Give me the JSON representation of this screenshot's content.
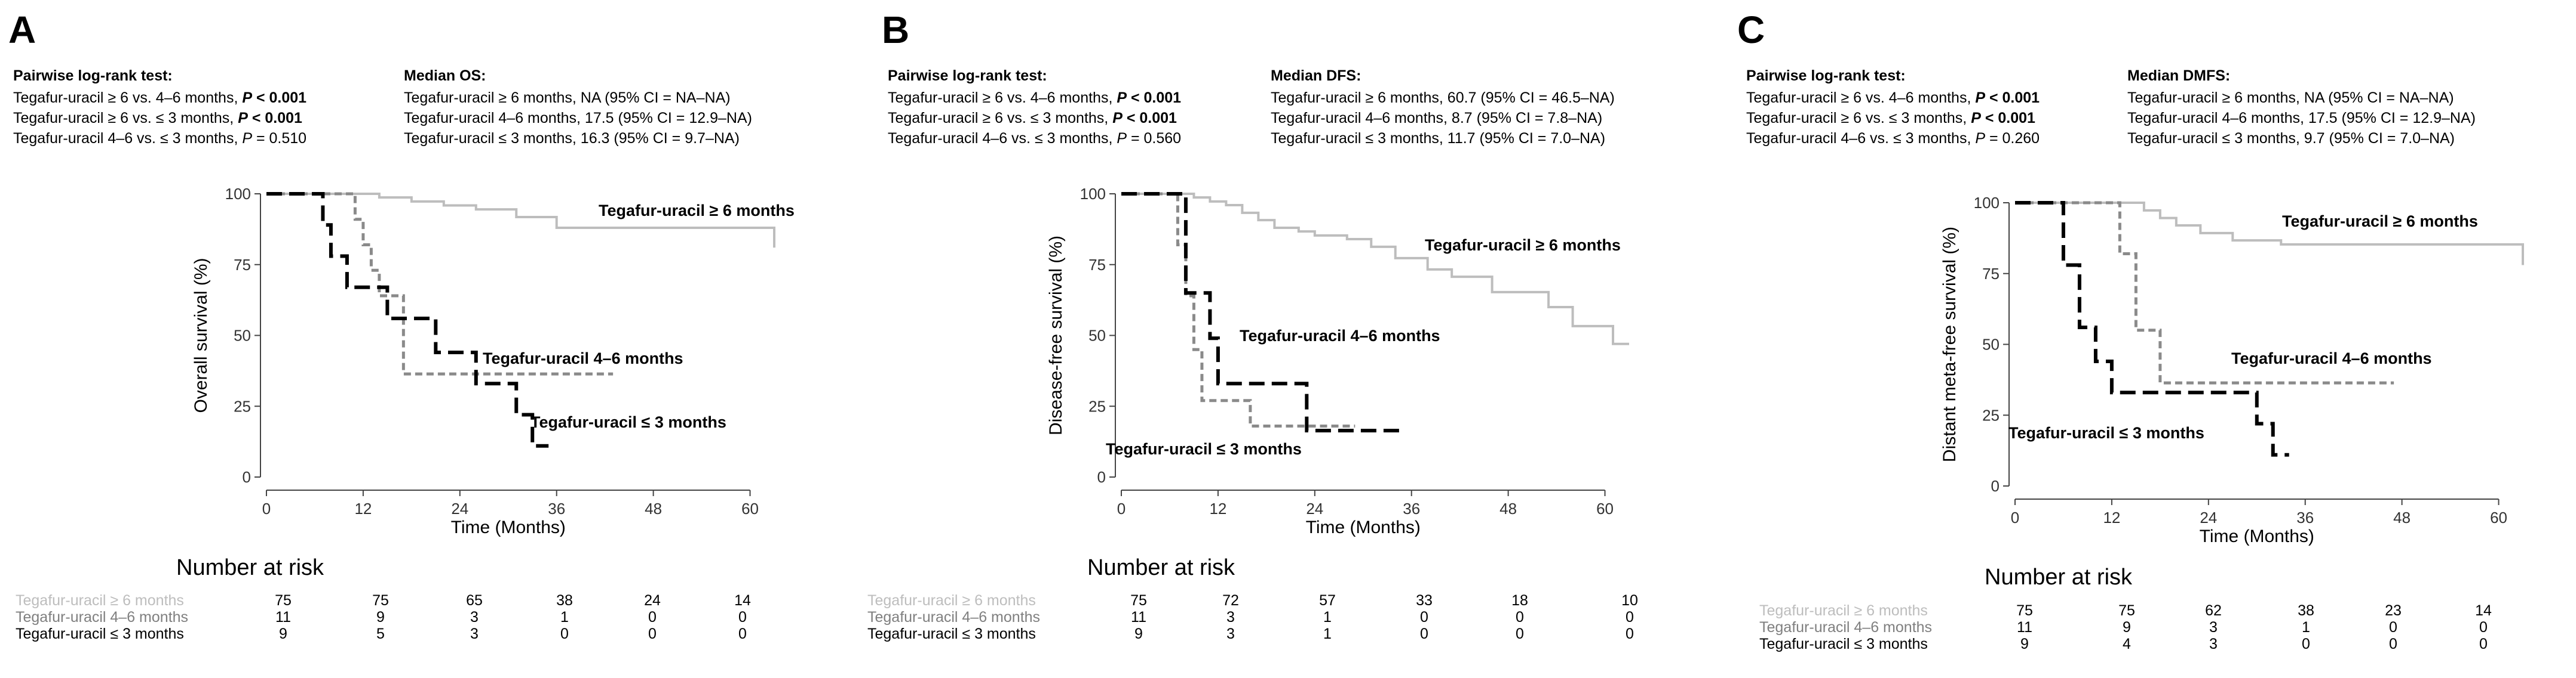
{
  "panels": [
    {
      "letter": "A",
      "test": {
        "heading": "Pairwise log-rank test:",
        "lines": [
          {
            "prefix": "Tegafur-uracil ≥ 6 vs. 4–6 months, ",
            "p": "P",
            "value": " < 0.001",
            "bold": true
          },
          {
            "prefix": "Tegafur-uracil ≥ 6 vs. ≤ 3 months, ",
            "p": "P",
            "value": " < 0.001",
            "bold": true
          },
          {
            "prefix": "Tegafur-uracil 4–6 vs. ≤ 3 months, ",
            "p": "P",
            "value": " = 0.510",
            "bold": false
          }
        ]
      },
      "median": {
        "heading": "Median OS:",
        "lines": [
          "Tegafur-uracil ≥ 6 months, NA (95% CI = NA–NA)",
          "Tegafur-uracil 4–6 months, 17.5 (95% CI = 12.9–NA)",
          "Tegafur-uracil ≤ 3 months, 16.3 (95% CI = 9.7–NA)"
        ]
      },
      "risk": {
        "title": "Number at risk",
        "rows": [
          {
            "label": "Tegafur-uracil ≥ 6 months",
            "color": "#bdbdbd",
            "values": [
              "75",
              "75",
              "65",
              "38",
              "24",
              "14"
            ]
          },
          {
            "label": "Tegafur-uracil 4–6 months",
            "color": "#7f7f7f",
            "values": [
              "11",
              "9",
              "3",
              "1",
              "0",
              "0"
            ]
          },
          {
            "label": "Tegafur-uracil ≤ 3 months",
            "color": "#000000",
            "values": [
              "9",
              "5",
              "3",
              "0",
              "0",
              "0"
            ]
          }
        ]
      }
    },
    {
      "letter": "B",
      "test": {
        "heading": "Pairwise log-rank test:",
        "lines": [
          {
            "prefix": "Tegafur-uracil ≥ 6 vs. 4–6 months, ",
            "p": "P",
            "value": " < 0.001",
            "bold": true
          },
          {
            "prefix": "Tegafur-uracil ≥ 6 vs. ≤ 3 months, ",
            "p": "P",
            "value": " < 0.001",
            "bold": true
          },
          {
            "prefix": "Tegafur-uracil 4–6 vs. ≤ 3 months, ",
            "p": "P",
            "value": " = 0.560",
            "bold": false
          }
        ]
      },
      "median": {
        "heading": "Median DFS:",
        "lines": [
          "Tegafur-uracil ≥ 6 months, 60.7 (95% CI = 46.5–NA)",
          "Tegafur-uracil 4–6 months, 8.7 (95% CI = 7.8–NA)",
          "Tegafur-uracil ≤ 3 months, 11.7 (95% CI = 7.0–NA)"
        ]
      },
      "risk": {
        "title": "Number at risk",
        "rows": [
          {
            "label": "Tegafur-uracil ≥ 6 months",
            "color": "#bdbdbd",
            "values": [
              "75",
              "72",
              "57",
              "33",
              "18",
              "10"
            ]
          },
          {
            "label": "Tegafur-uracil 4–6 months",
            "color": "#7f7f7f",
            "values": [
              "11",
              "3",
              "1",
              "0",
              "0",
              "0"
            ]
          },
          {
            "label": "Tegafur-uracil ≤ 3 months",
            "color": "#000000",
            "values": [
              "9",
              "3",
              "1",
              "0",
              "0",
              "0"
            ]
          }
        ]
      }
    },
    {
      "letter": "C",
      "test": {
        "heading": "Pairwise log-rank test:",
        "lines": [
          {
            "prefix": "Tegafur-uracil ≥ 6 vs. 4–6 months, ",
            "p": "P",
            "value": " < 0.001",
            "bold": true
          },
          {
            "prefix": "Tegafur-uracil ≥ 6 vs. ≤ 3 months, ",
            "p": "P",
            "value": " < 0.001",
            "bold": true
          },
          {
            "prefix": "Tegafur-uracil 4–6 vs. ≤ 3 months, ",
            "p": "P",
            "value": " = 0.260",
            "bold": false
          }
        ]
      },
      "median": {
        "heading": "Median DMFS:",
        "lines": [
          "Tegafur-uracil ≥ 6 months, NA (95% CI = NA–NA)",
          "Tegafur-uracil 4–6 months, 17.5 (95% CI = 12.9–NA)",
          "Tegafur-uracil ≤ 3 months, 9.7 (95% CI = 7.0–NA)"
        ]
      },
      "risk": {
        "title": "Number at risk",
        "rows": [
          {
            "label": "Tegafur-uracil ≥ 6 months",
            "color": "#bdbdbd",
            "values": [
              "75",
              "75",
              "62",
              "38",
              "23",
              "14"
            ]
          },
          {
            "label": "Tegafur-uracil 4–6 months",
            "color": "#7f7f7f",
            "values": [
              "11",
              "9",
              "3",
              "1",
              "0",
              "0"
            ]
          },
          {
            "label": "Tegafur-uracil ≤ 3 months",
            "color": "#000000",
            "values": [
              "9",
              "4",
              "3",
              "0",
              "0",
              "0"
            ]
          }
        ]
      }
    }
  ],
  "colors": {
    "ge6": "#bdbdbd",
    "m46": "#8a8a8a",
    "le3": "#000000"
  },
  "chart_data": [
    {
      "type": "line",
      "title": "A",
      "xlabel": "Time (Months)",
      "ylabel": "Overall survival (%)",
      "xlim": [
        0,
        63
      ],
      "ylim": [
        0,
        100
      ],
      "xticks": [
        0,
        12,
        24,
        36,
        48,
        60
      ],
      "yticks": [
        0,
        25,
        50,
        75,
        100
      ],
      "series": [
        {
          "name": "Tegafur-uracil ≥ 6 months",
          "label": "Tegafur-uracil ≥ 6 months",
          "style": "solid",
          "color": "#bdbdbd",
          "x": [
            0,
            12,
            14,
            18,
            22,
            26,
            31,
            36,
            62,
            63
          ],
          "y": [
            100,
            100,
            98.7,
            97.3,
            95.9,
            94.5,
            91.8,
            88,
            88,
            81
          ]
        },
        {
          "name": "Tegafur-uracil 4–6 months",
          "label": "Tegafur-uracil 4–6 months",
          "style": "dotted",
          "color": "#8a8a8a",
          "x": [
            0,
            10,
            11,
            12,
            13,
            14,
            17,
            43
          ],
          "y": [
            100,
            100,
            91,
            82,
            73,
            64,
            36.4,
            36.4
          ]
        },
        {
          "name": "Tegafur-uracil ≤ 3 months",
          "label": "Tegafur-uracil ≤ 3 months",
          "style": "dashed",
          "color": "#000000",
          "x": [
            0,
            6,
            7,
            8,
            10,
            15,
            21,
            26,
            31,
            33,
            35
          ],
          "y": [
            100,
            100,
            89,
            78,
            67,
            56,
            44,
            33,
            22,
            11,
            11
          ]
        }
      ]
    },
    {
      "type": "line",
      "title": "B",
      "xlabel": "Time (Months)",
      "ylabel": "Disease-free survival (%)",
      "xlim": [
        0,
        63
      ],
      "ylim": [
        0,
        100
      ],
      "xticks": [
        0,
        12,
        24,
        36,
        48,
        60
      ],
      "yticks": [
        0,
        25,
        50,
        75,
        100
      ],
      "series": [
        {
          "name": "Tegafur-uracil ≥ 6 months",
          "label": "Tegafur-uracil ≥ 6 months",
          "style": "solid",
          "color": "#bdbdbd",
          "x": [
            0,
            6,
            9,
            11,
            13,
            15,
            17,
            19,
            22,
            24,
            28,
            31,
            34,
            38,
            41,
            46,
            53,
            56,
            61,
            63
          ],
          "y": [
            100,
            100,
            98.7,
            97.3,
            96,
            93.3,
            90.7,
            88,
            86.7,
            85.3,
            84,
            81.3,
            77.3,
            73.3,
            70.7,
            65.3,
            60,
            53.3,
            47,
            47
          ]
        },
        {
          "name": "Tegafur-uracil 4–6 months",
          "label": "Tegafur-uracil 4–6 months",
          "style": "dotted",
          "color": "#8a8a8a",
          "x": [
            0,
            6,
            7,
            8,
            9,
            10,
            16,
            29
          ],
          "y": [
            100,
            100,
            82,
            64,
            45,
            27,
            18,
            18
          ]
        },
        {
          "name": "Tegafur-uracil ≤ 3 months",
          "label": "Tegafur-uracil ≤ 3 months",
          "style": "dashed",
          "color": "#000000",
          "x": [
            0,
            6,
            8,
            11,
            12,
            23,
            35
          ],
          "y": [
            100,
            100,
            65,
            49,
            33,
            16.4,
            16.4
          ]
        }
      ]
    },
    {
      "type": "line",
      "title": "C",
      "xlabel": "Time (Months)",
      "ylabel": "Distant meta-free survival (%)",
      "xlim": [
        0,
        63
      ],
      "ylim": [
        0,
        100
      ],
      "xticks": [
        0,
        12,
        24,
        36,
        48,
        60
      ],
      "yticks": [
        0,
        25,
        50,
        75,
        100
      ],
      "series": [
        {
          "name": "Tegafur-uracil ≥ 6 months",
          "label": "Tegafur-uracil ≥ 6 months",
          "style": "solid",
          "color": "#bdbdbd",
          "x": [
            0,
            14,
            16,
            18,
            20,
            23,
            27,
            33,
            62,
            63
          ],
          "y": [
            100,
            100,
            97.3,
            94.6,
            92,
            89.3,
            86.7,
            85.3,
            85.3,
            78
          ]
        },
        {
          "name": "Tegafur-uracil 4–6 months",
          "label": "Tegafur-uracil 4–6 months",
          "style": "dotted",
          "color": "#8a8a8a",
          "x": [
            0,
            9,
            13,
            15,
            18,
            47
          ],
          "y": [
            100,
            100,
            82,
            55,
            36.4,
            36.4
          ]
        },
        {
          "name": "Tegafur-uracil ≤ 3 months",
          "label": "Tegafur-uracil ≤ 3 months",
          "style": "dashed",
          "color": "#000000",
          "x": [
            0,
            5,
            6,
            8,
            10,
            12,
            28,
            30,
            32,
            34
          ],
          "y": [
            100,
            100,
            78,
            56,
            44,
            33,
            33,
            22,
            11,
            11
          ]
        }
      ]
    }
  ]
}
